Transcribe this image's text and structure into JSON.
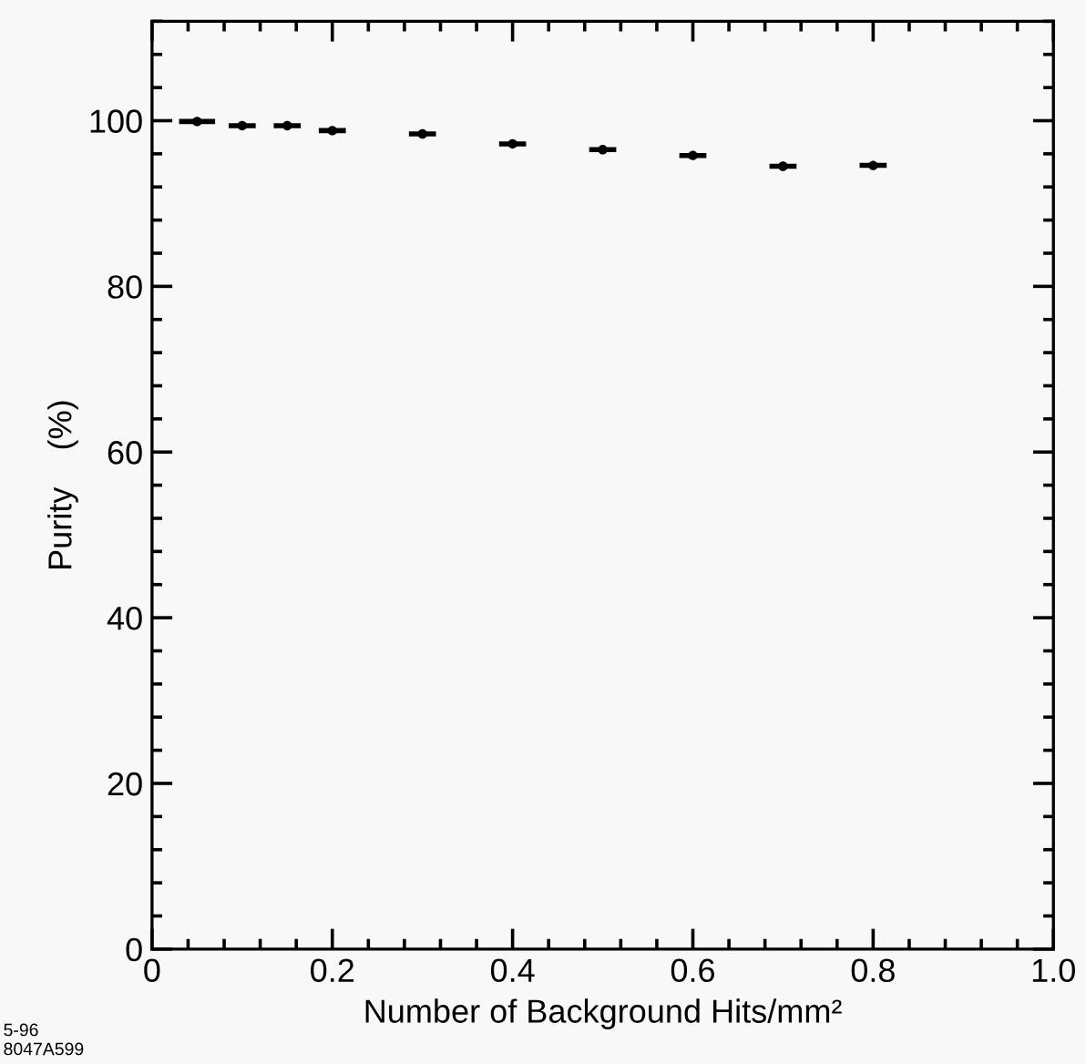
{
  "chart_data": {
    "type": "scatter",
    "xlabel": "Number of Background Hits/mm²",
    "ylabel": "Purity    (%)",
    "x": [
      0.05,
      0.1,
      0.15,
      0.2,
      0.3,
      0.4,
      0.5,
      0.6,
      0.7,
      0.8
    ],
    "values": [
      99.9,
      99.4,
      99.4,
      98.8,
      98.4,
      97.2,
      96.5,
      95.8,
      94.5,
      94.6
    ],
    "xerrors": [
      0.02,
      0.015,
      0.015,
      0.015,
      0.015,
      0.015,
      0.015,
      0.015,
      0.015,
      0.015
    ],
    "color": "#000000",
    "marker": "circle",
    "xlim": [
      0,
      1.0
    ],
    "ylim": [
      0,
      112
    ],
    "xticks": [
      0,
      0.2,
      0.4,
      0.6,
      0.8,
      {
        "value": 1.0,
        "label": "1.0"
      }
    ],
    "yticks": [
      0,
      20,
      40,
      60,
      80,
      100
    ],
    "grid": false,
    "legend": false,
    "annotations": [
      "5-96\n8047A599"
    ]
  }
}
